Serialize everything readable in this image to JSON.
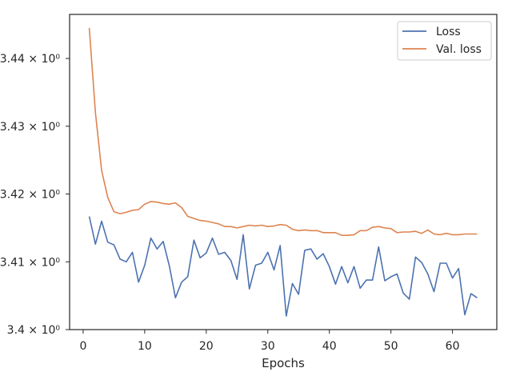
{
  "chart_data": {
    "type": "line",
    "title": "",
    "xlabel": "Epochs",
    "ylabel": "",
    "xlim": [
      -2.2,
      67.2
    ],
    "ylim": [
      3.4,
      3.4465
    ],
    "xticks": [
      0,
      10,
      20,
      30,
      40,
      50,
      60
    ],
    "yticks": [
      {
        "value": 3.4,
        "label": "3.4 × 10⁰"
      },
      {
        "value": 3.41,
        "label": "3.41 × 10⁰"
      },
      {
        "value": 3.42,
        "label": "3.42 × 10⁰"
      },
      {
        "value": 3.43,
        "label": "3.43 × 10⁰"
      },
      {
        "value": 3.44,
        "label": "3.44 × 10⁰"
      }
    ],
    "grid": false,
    "legend_position": "top-right",
    "series": [
      {
        "name": "Loss",
        "color": "#4c72b0",
        "x": [
          1,
          2,
          3,
          4,
          5,
          6,
          7,
          8,
          9,
          10,
          11,
          12,
          13,
          14,
          15,
          16,
          17,
          18,
          19,
          20,
          21,
          22,
          23,
          24,
          25,
          26,
          27,
          28,
          29,
          30,
          31,
          32,
          33,
          34,
          35,
          36,
          37,
          38,
          39,
          40,
          41,
          42,
          43,
          44,
          45,
          46,
          47,
          48,
          49,
          50,
          51,
          52,
          53,
          54,
          55,
          56,
          57,
          58,
          59,
          60,
          61,
          62,
          63,
          64
        ],
        "values": [
          3.4167,
          3.4126,
          3.416,
          3.4129,
          3.4125,
          3.4104,
          3.41,
          3.4114,
          3.407,
          3.4095,
          3.4135,
          3.4119,
          3.413,
          3.4094,
          3.4047,
          3.407,
          3.4078,
          3.4132,
          3.4106,
          3.4113,
          3.4135,
          3.4111,
          3.4114,
          3.4102,
          3.4074,
          3.414,
          3.406,
          3.4095,
          3.4098,
          3.4114,
          3.4088,
          3.4124,
          3.402,
          3.4068,
          3.4052,
          3.4117,
          3.4119,
          3.4104,
          3.4112,
          3.4093,
          3.4067,
          3.4093,
          3.4069,
          3.4093,
          3.4061,
          3.4073,
          3.4073,
          3.4122,
          3.4072,
          3.4078,
          3.4082,
          3.4054,
          3.4045,
          3.4107,
          3.4099,
          3.4082,
          3.4056,
          3.4098,
          3.4098,
          3.4076,
          3.409,
          3.4022,
          3.4053,
          3.4047
        ]
      },
      {
        "name": "Val. loss",
        "color": "#dd8452",
        "x": [
          1,
          2,
          3,
          4,
          5,
          6,
          7,
          8,
          9,
          10,
          11,
          12,
          13,
          14,
          15,
          16,
          17,
          18,
          19,
          20,
          21,
          22,
          23,
          24,
          25,
          26,
          27,
          28,
          29,
          30,
          31,
          32,
          33,
          34,
          35,
          36,
          37,
          38,
          39,
          40,
          41,
          42,
          43,
          44,
          45,
          46,
          47,
          48,
          49,
          50,
          51,
          52,
          53,
          54,
          55,
          56,
          57,
          58,
          59,
          60,
          61,
          62,
          63,
          64
        ],
        "values": [
          3.4445,
          3.432,
          3.4235,
          3.4195,
          3.4174,
          3.4171,
          3.4173,
          3.4176,
          3.4177,
          3.4185,
          3.4189,
          3.4188,
          3.4186,
          3.4185,
          3.4187,
          3.418,
          3.4167,
          3.4164,
          3.4161,
          3.416,
          3.4158,
          3.4156,
          3.4152,
          3.4152,
          3.415,
          3.4152,
          3.4154,
          3.4153,
          3.4154,
          3.4152,
          3.4153,
          3.4155,
          3.4154,
          3.4148,
          3.4146,
          3.4147,
          3.4146,
          3.4146,
          3.4143,
          3.4143,
          3.4143,
          3.4139,
          3.4139,
          3.414,
          3.4146,
          3.4146,
          3.4151,
          3.4152,
          3.415,
          3.4149,
          3.4143,
          3.4144,
          3.4144,
          3.4145,
          3.4142,
          3.4147,
          3.4141,
          3.414,
          3.4142,
          3.414,
          3.414,
          3.4141,
          3.4141,
          3.4141
        ]
      }
    ]
  }
}
